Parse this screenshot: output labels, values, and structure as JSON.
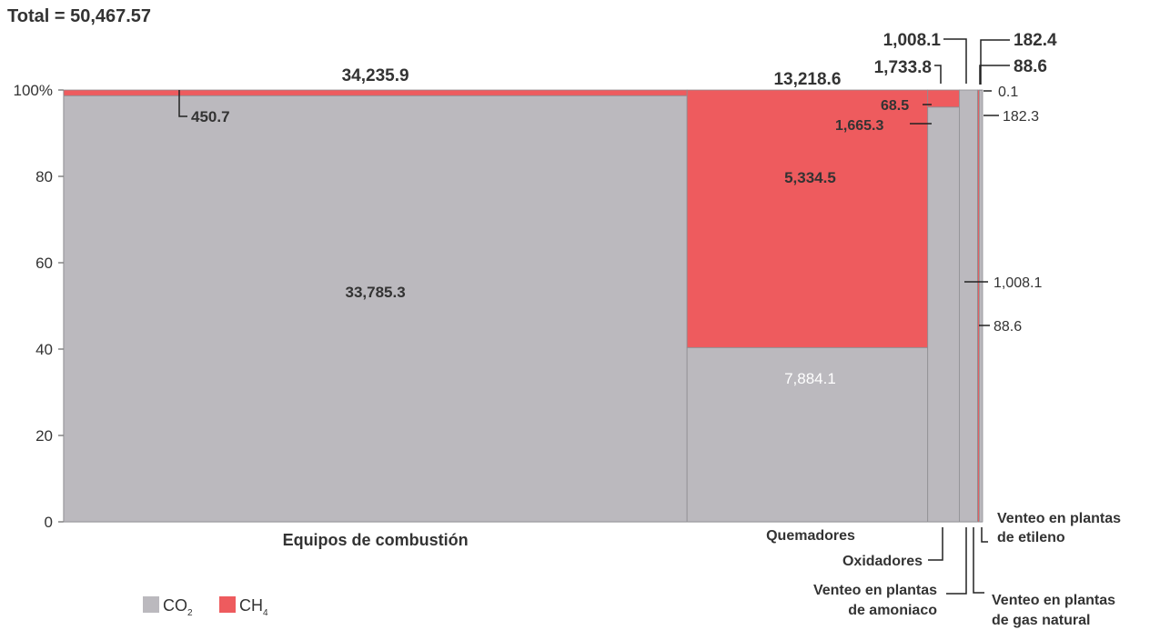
{
  "total_label": "Total = 50,467.57",
  "colors": {
    "co2": "#bbb9be",
    "ch4": "#ee5b5e",
    "text": "#333333",
    "white": "#ffffff"
  },
  "legend": {
    "co2": "CO",
    "co2_sub": "2",
    "ch4": "CH",
    "ch4_sub": "4"
  },
  "chart_data": {
    "type": "bar",
    "variant": "mekko (variable-width 100% stacked)",
    "total": 50467.57,
    "y_axis": {
      "ticks": [
        0,
        20,
        40,
        60,
        80,
        100
      ],
      "tick_labels": [
        "0",
        "20",
        "40",
        "60",
        "80",
        "100%"
      ],
      "ylim": [
        0,
        100
      ]
    },
    "series": [
      {
        "name": "CO2",
        "key": "co2"
      },
      {
        "name": "CH4",
        "key": "ch4"
      }
    ],
    "categories": [
      {
        "name": "Equipos de combustión",
        "total": 34235.9,
        "total_label": "34,235.9",
        "co2": 33785.3,
        "co2_label": "33,785.3",
        "ch4": 450.7,
        "ch4_label": "450.7"
      },
      {
        "name": "Quemadores",
        "total": 13218.6,
        "total_label": "13,218.6",
        "co2": 5334.5,
        "co2_label": "5,334.5",
        "ch4": 7884.1,
        "ch4_label": "7,884.1"
      },
      {
        "name": "Oxidadores",
        "total": 1733.8,
        "total_label": "1,733.8",
        "co2": 1665.3,
        "co2_label": "1,665.3",
        "ch4": 68.5,
        "ch4_label": "68.5"
      },
      {
        "name": "Venteo en plantas de amoniaco",
        "name_lines": [
          "Venteo en plantas",
          "de amoniaco"
        ],
        "total": 1008.1,
        "total_label": "1,008.1",
        "co2": 1008.1,
        "co2_label": "1,008.1",
        "ch4": 0,
        "ch4_label": ""
      },
      {
        "name": "Venteo en plantas de gas natural",
        "name_lines": [
          "Venteo en plantas",
          "de gas natural"
        ],
        "total": 88.6,
        "total_label": "88.6",
        "co2": 0,
        "co2_label": "",
        "ch4": 88.6,
        "ch4_label": "88.6"
      },
      {
        "name": "Venteo en plantas de etileno",
        "name_lines": [
          "Venteo en plantas",
          "de etileno"
        ],
        "total": 182.4,
        "total_label": "182.4",
        "co2": 182.3,
        "co2_label": "182.3",
        "ch4": 0.1,
        "ch4_label": "0.1"
      }
    ]
  }
}
